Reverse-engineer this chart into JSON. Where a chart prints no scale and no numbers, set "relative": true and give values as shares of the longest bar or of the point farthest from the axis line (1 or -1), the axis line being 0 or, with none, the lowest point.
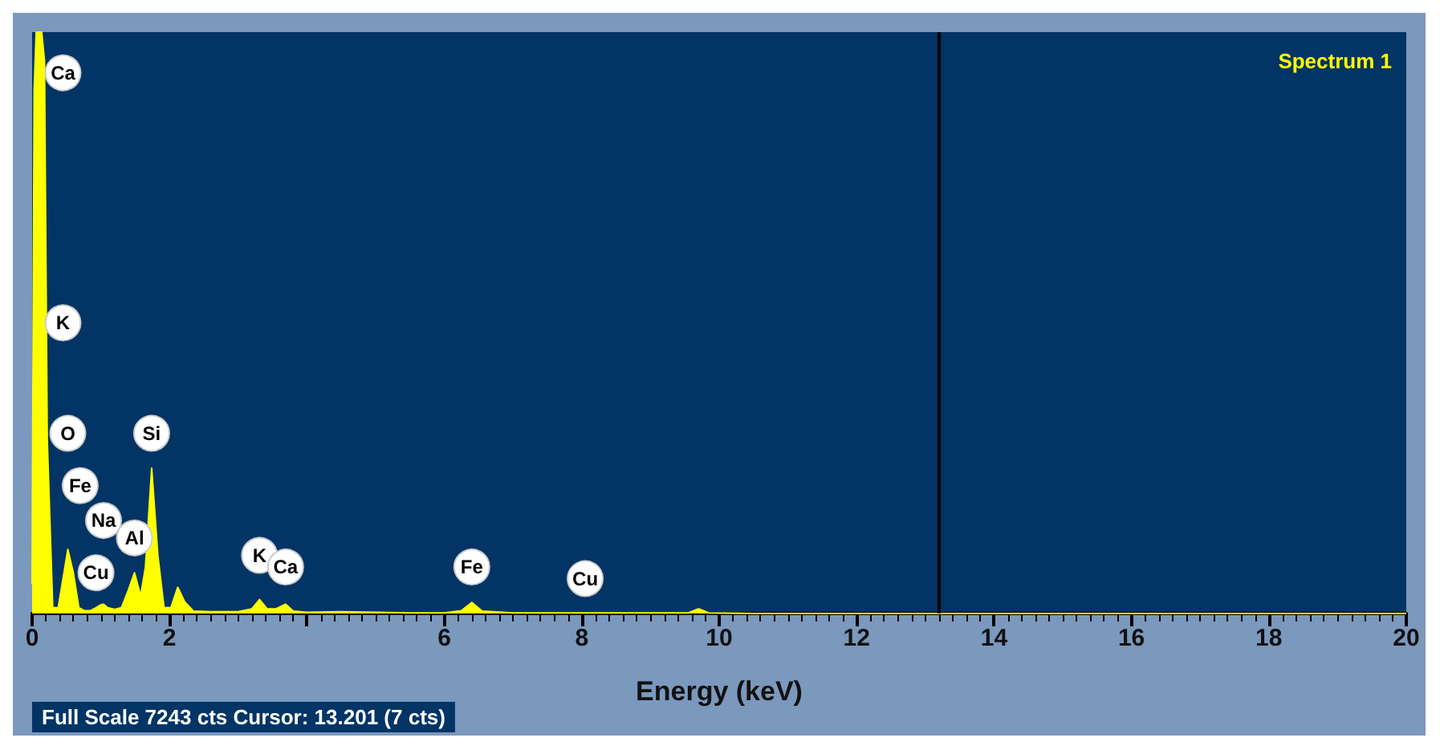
{
  "chart_data": {
    "type": "area",
    "relative": true,
    "xlabel": "Energy (keV)",
    "xlim": [
      0,
      20
    ],
    "xticks": [
      0,
      2,
      {
        "value": 4,
        "label": null
      },
      6,
      8,
      10,
      12,
      14,
      16,
      18,
      20
    ],
    "legend": "top right",
    "grid": false,
    "marker": "none",
    "ref_lines": [
      {
        "axis": "x",
        "value": 13.201,
        "color": "#000000"
      }
    ],
    "annotations": [
      {
        "text": "Ca",
        "x": 0.45,
        "y": 0.93
      },
      {
        "text": "K",
        "x": 0.45,
        "y": 0.5
      },
      {
        "text": "O",
        "x": 0.52,
        "y": 0.31
      },
      {
        "text": "Fe",
        "x": 0.7,
        "y": 0.22
      },
      {
        "text": "Na",
        "x": 1.04,
        "y": 0.16
      },
      {
        "text": "Cu",
        "x": 0.93,
        "y": 0.07
      },
      {
        "text": "Al",
        "x": 1.49,
        "y": 0.13
      },
      {
        "text": "Si",
        "x": 1.74,
        "y": 0.31
      },
      {
        "text": "K",
        "x": 3.31,
        "y": 0.1
      },
      {
        "text": "Ca",
        "x": 3.69,
        "y": 0.08
      },
      {
        "text": "Fe",
        "x": 6.4,
        "y": 0.08
      },
      {
        "text": "Cu",
        "x": 8.05,
        "y": 0.06
      },
      "Full Scale 7243 cts Cursor: 13.201 (7 cts)"
    ],
    "x": [
      0,
      0.03,
      0.06,
      0.1,
      0.14,
      0.18,
      0.22,
      0.3,
      0.38,
      0.45,
      0.52,
      0.6,
      0.68,
      0.76,
      0.85,
      0.93,
      1.0,
      1.04,
      1.1,
      1.2,
      1.3,
      1.4,
      1.49,
      1.58,
      1.65,
      1.74,
      1.83,
      1.92,
      2.02,
      2.12,
      2.22,
      2.35,
      2.6,
      3.0,
      3.2,
      3.31,
      3.42,
      3.55,
      3.69,
      3.8,
      4.0,
      4.5,
      5.0,
      5.5,
      6.0,
      6.25,
      6.4,
      6.55,
      7.0,
      8.0,
      9.0,
      9.55,
      9.7,
      9.85,
      10.5,
      12,
      14,
      16,
      18,
      20
    ],
    "series": [
      {
        "name": "Spectrum 1",
        "color": "#ffff00",
        "values": [
          0.05,
          0.9,
          1,
          1,
          1,
          0.95,
          0.3,
          0.01,
          0.01,
          0.06,
          0.11,
          0.07,
          0.01,
          0.005,
          0.005,
          0.01,
          0.015,
          0.016,
          0.01,
          0.007,
          0.01,
          0.04,
          0.07,
          0.03,
          0.08,
          0.25,
          0.1,
          0.01,
          0.01,
          0.045,
          0.02,
          0.004,
          0.003,
          0.003,
          0.008,
          0.024,
          0.008,
          0.008,
          0.016,
          0.004,
          0.002,
          0.003,
          0.002,
          0.001,
          0.001,
          0.005,
          0.019,
          0.004,
          0.001,
          0.001,
          0.001,
          0.001,
          0.008,
          0.001,
          0,
          0,
          0,
          0,
          0,
          0
        ]
      }
    ]
  }
}
